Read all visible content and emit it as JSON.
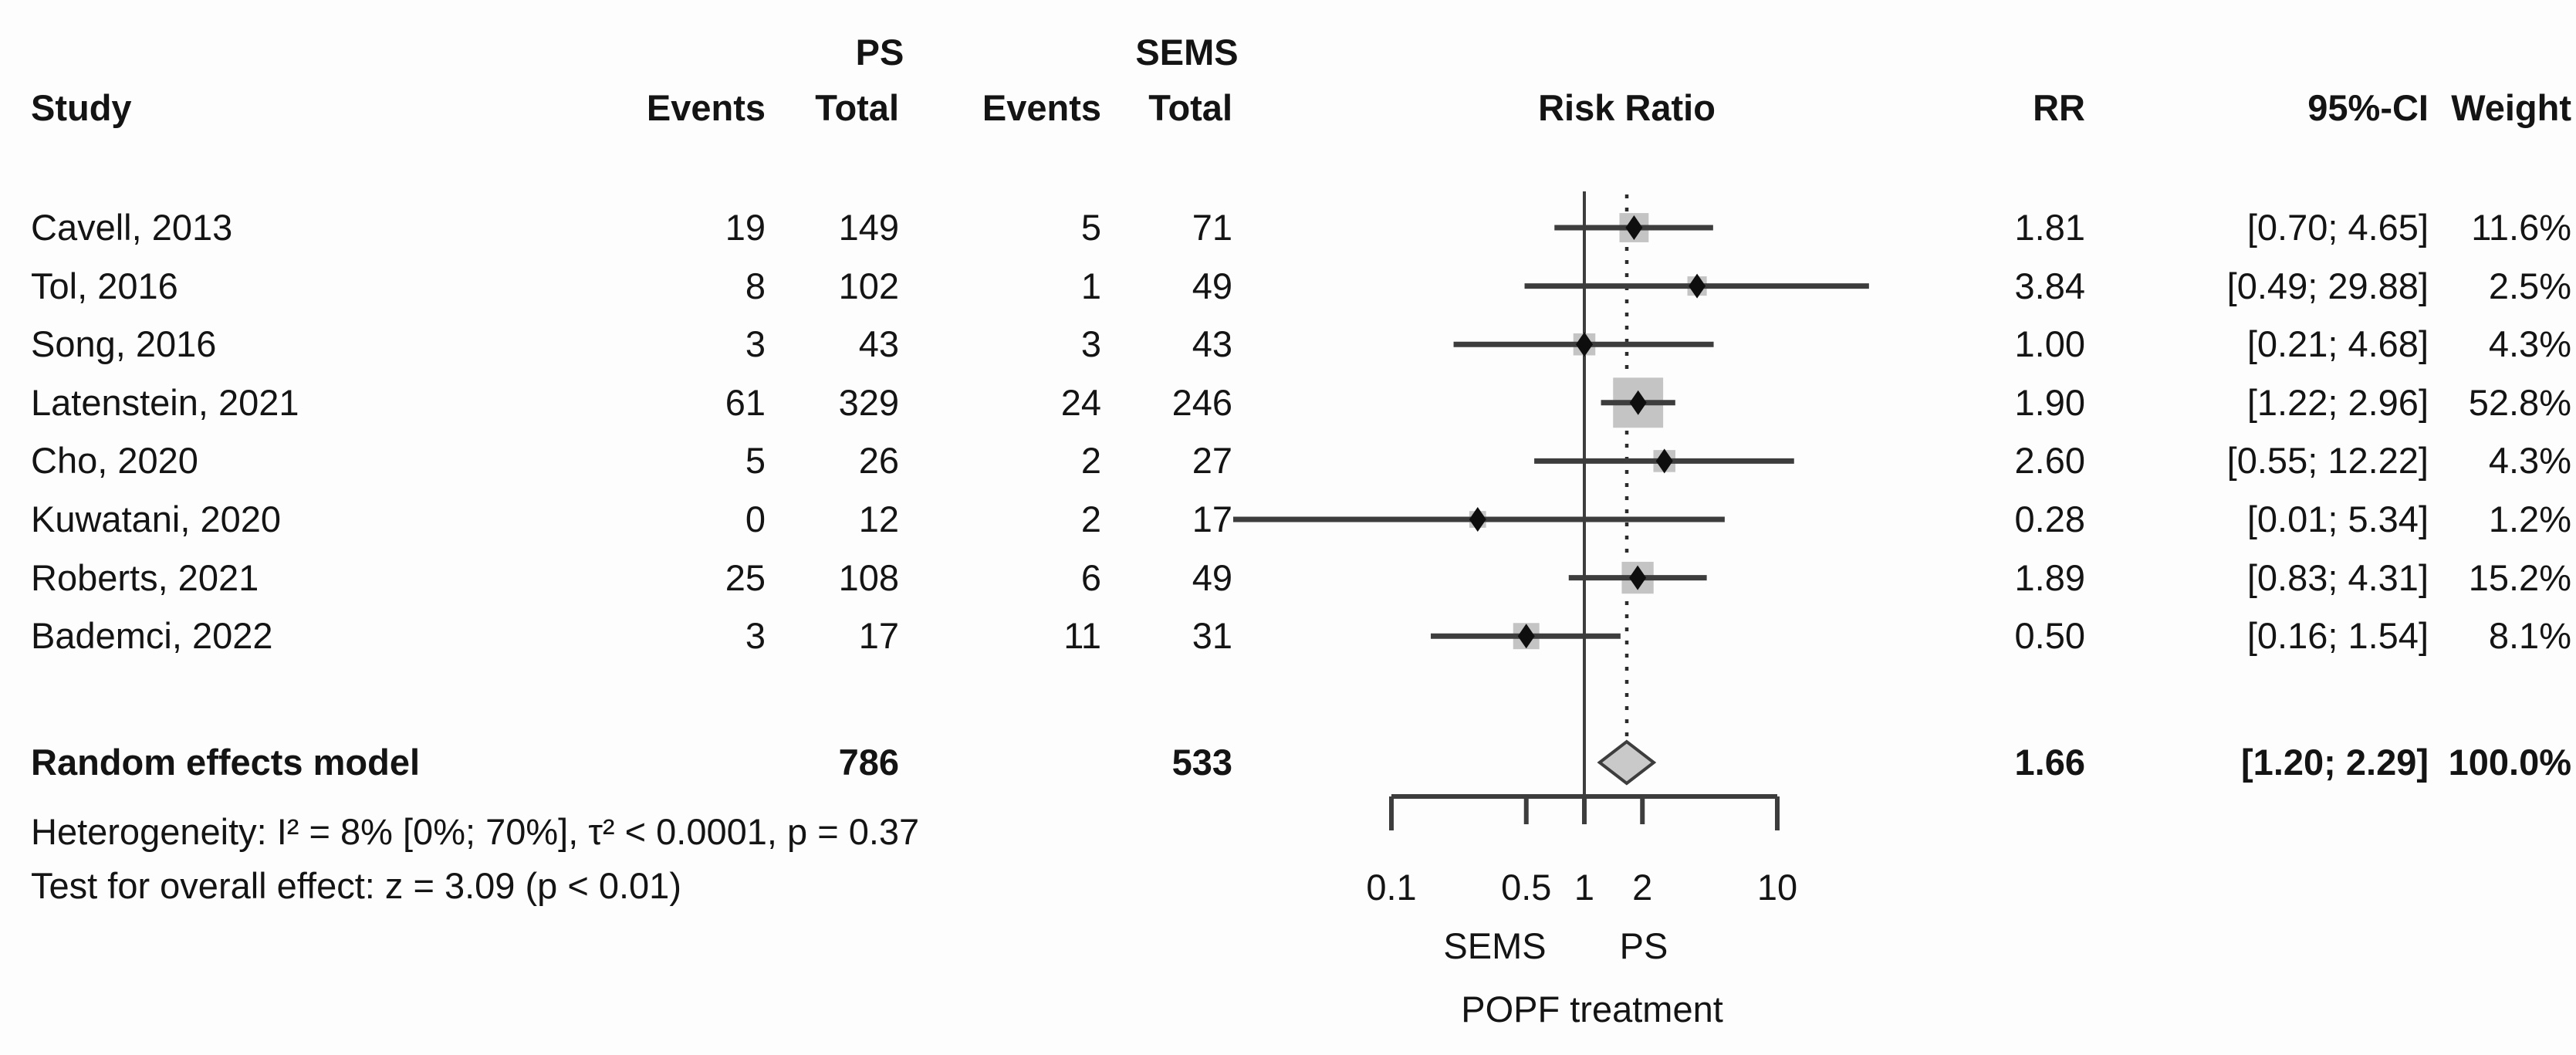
{
  "header": {
    "group1_label": "PS",
    "group2_label": "SEMS",
    "study_col": "Study",
    "events_col": "Events",
    "total_col": "Total",
    "risk_ratio_col": "Risk Ratio",
    "rr_col": "RR",
    "ci_col": "95%-CI",
    "weight_col": "Weight"
  },
  "chart_data": {
    "type": "forest",
    "effect_measure": "Risk Ratio",
    "x_scale": "log",
    "x_ticks": [
      0.1,
      0.5,
      1,
      2,
      10
    ],
    "x_tick_labels": [
      "0.1",
      "0.5",
      "1",
      "2",
      "10"
    ],
    "reference_line": 1,
    "dotted_line_at": 1.66,
    "axis_side_labels": {
      "left": "SEMS",
      "right": "PS"
    },
    "axis_caption": "POPF treatment",
    "studies": [
      {
        "name": "Cavell, 2013",
        "ps_events": 19,
        "ps_total": 149,
        "sems_events": 5,
        "sems_total": 71,
        "rr": 1.81,
        "ci": "[0.70; 4.65]",
        "ci_low": 0.7,
        "ci_high": 4.65,
        "weight": "11.6%",
        "weight_pct": 11.6
      },
      {
        "name": "Tol, 2016",
        "ps_events": 8,
        "ps_total": 102,
        "sems_events": 1,
        "sems_total": 49,
        "rr": 3.84,
        "ci": "[0.49; 29.88]",
        "ci_low": 0.49,
        "ci_high": 29.88,
        "weight": "2.5%",
        "weight_pct": 2.5
      },
      {
        "name": "Song, 2016",
        "ps_events": 3,
        "ps_total": 43,
        "sems_events": 3,
        "sems_total": 43,
        "rr": 1.0,
        "ci": "[0.21; 4.68]",
        "ci_low": 0.21,
        "ci_high": 4.68,
        "weight": "4.3%",
        "weight_pct": 4.3
      },
      {
        "name": "Latenstein, 2021",
        "ps_events": 61,
        "ps_total": 329,
        "sems_events": 24,
        "sems_total": 246,
        "rr": 1.9,
        "ci": "[1.22; 2.96]",
        "ci_low": 1.22,
        "ci_high": 2.96,
        "weight": "52.8%",
        "weight_pct": 52.8
      },
      {
        "name": "Cho, 2020",
        "ps_events": 5,
        "ps_total": 26,
        "sems_events": 2,
        "sems_total": 27,
        "rr": 2.6,
        "ci": "[0.55; 12.22]",
        "ci_low": 0.55,
        "ci_high": 12.22,
        "weight": "4.3%",
        "weight_pct": 4.3
      },
      {
        "name": "Kuwatani, 2020",
        "ps_events": 0,
        "ps_total": 12,
        "sems_events": 2,
        "sems_total": 17,
        "rr": 0.28,
        "ci": "[0.01; 5.34]",
        "ci_low": 0.01,
        "ci_high": 5.34,
        "weight": "1.2%",
        "weight_pct": 1.2
      },
      {
        "name": "Roberts, 2021",
        "ps_events": 25,
        "ps_total": 108,
        "sems_events": 6,
        "sems_total": 49,
        "rr": 1.89,
        "ci": "[0.83; 4.31]",
        "ci_low": 0.83,
        "ci_high": 4.31,
        "weight": "15.2%",
        "weight_pct": 15.2
      },
      {
        "name": "Bademci, 2022",
        "ps_events": 3,
        "ps_total": 17,
        "sems_events": 11,
        "sems_total": 31,
        "rr": 0.5,
        "ci": "[0.16; 1.54]",
        "ci_low": 0.16,
        "ci_high": 1.54,
        "weight": "8.1%",
        "weight_pct": 8.1
      }
    ],
    "summary": {
      "label": "Random effects model",
      "ps_total": 786,
      "sems_total": 533,
      "rr": 1.66,
      "ci": "[1.20; 2.29]",
      "ci_low": 1.2,
      "ci_high": 2.29,
      "weight": "100.0%"
    }
  },
  "footnotes": {
    "heterogeneity": "Heterogeneity: I² = 8% [0%; 70%], τ² < 0.0001, p = 0.37",
    "overall_effect": "Test for overall effect: z = 3.09 (p < 0.01)"
  },
  "colors": {
    "text": "#141414",
    "line": "#3d3d3d",
    "square_fill": "#c4c4c4",
    "diamond_fill": "#c9c9c9",
    "diamond_stroke": "#3d3d3d"
  }
}
